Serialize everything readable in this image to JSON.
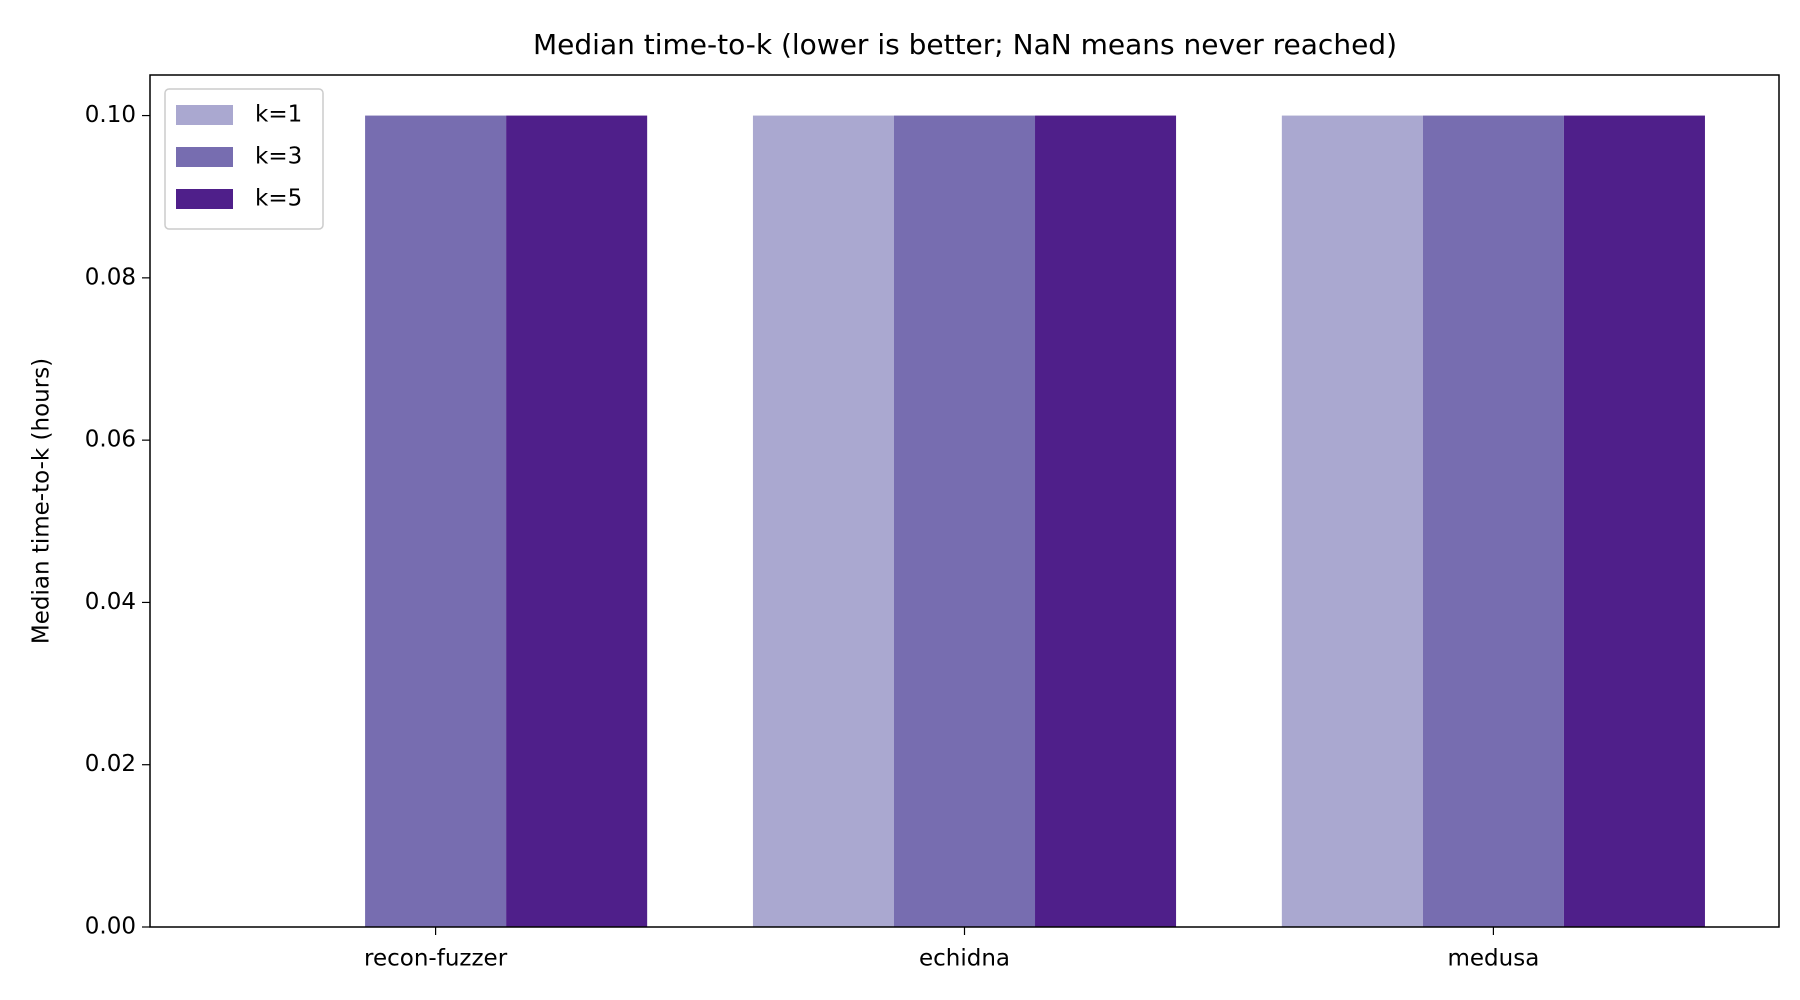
{
  "chart_data": {
    "type": "bar",
    "title": "Median time-to-k (lower is better; NaN means never reached)",
    "y_label": "Median time-to-k (hours)",
    "categories": [
      "recon-fuzzer",
      "echidna",
      "medusa"
    ],
    "series": [
      {
        "name": "k=1",
        "color": "#aaa8d0",
        "values": [
          null,
          0.1,
          0.1
        ]
      },
      {
        "name": "k=3",
        "color": "#776db0",
        "values": [
          0.1,
          0.1,
          0.1
        ]
      },
      {
        "name": "k=5",
        "color": "#4f1f8a",
        "values": [
          0.1,
          0.1,
          0.1
        ]
      }
    ],
    "ylim": [
      0,
      0.105
    ],
    "yticks": [
      {
        "value": 0,
        "label": "0.00"
      },
      0.02,
      0.04,
      0.06,
      0.08,
      {
        "value": 0.1,
        "label": "0.10"
      }
    ],
    "legend": "upper-left",
    "grid": false
  }
}
